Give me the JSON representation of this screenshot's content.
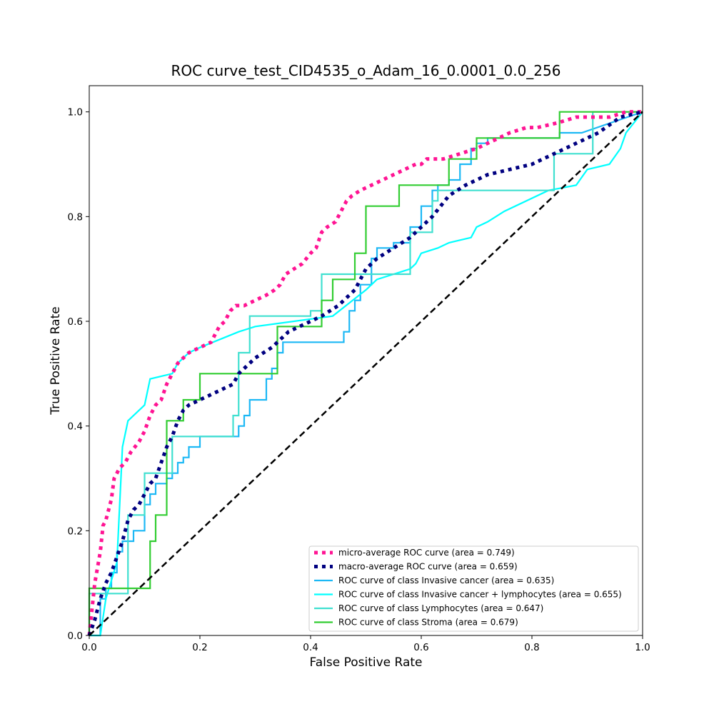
{
  "chart_data": {
    "type": "line",
    "title": "ROC curve_test_CID4535_o_Adam_16_0.0001_0.0_256",
    "xlabel": "False Positive Rate",
    "ylabel": "True Positive Rate",
    "xlim": [
      0.0,
      1.0
    ],
    "ylim": [
      0.0,
      1.05
    ],
    "xticks": [
      "0.0",
      "0.2",
      "0.4",
      "0.6",
      "0.8",
      "1.0"
    ],
    "yticks": [
      "0.0",
      "0.2",
      "0.4",
      "0.6",
      "0.8",
      "1.0"
    ],
    "grid": false,
    "legend_position": "lower-right",
    "series": [
      {
        "name": "micro-average ROC curve (area = 0.749)",
        "color": "#ff1493",
        "style": "dotted",
        "x": [
          0.0,
          0.005,
          0.01,
          0.015,
          0.02,
          0.025,
          0.03,
          0.04,
          0.045,
          0.05,
          0.055,
          0.065,
          0.075,
          0.09,
          0.1,
          0.11,
          0.12,
          0.13,
          0.14,
          0.15,
          0.16,
          0.17,
          0.18,
          0.2,
          0.22,
          0.235,
          0.245,
          0.255,
          0.265,
          0.28,
          0.3,
          0.32,
          0.335,
          0.345,
          0.355,
          0.37,
          0.385,
          0.4,
          0.41,
          0.42,
          0.43,
          0.445,
          0.455,
          0.465,
          0.475,
          0.49,
          0.51,
          0.53,
          0.55,
          0.57,
          0.59,
          0.6,
          0.61,
          0.64,
          0.67,
          0.7,
          0.72,
          0.74,
          0.76,
          0.79,
          0.81,
          0.85,
          0.88,
          0.91,
          0.94,
          0.97,
          1.0
        ],
        "y": [
          0.0,
          0.05,
          0.1,
          0.13,
          0.16,
          0.21,
          0.22,
          0.26,
          0.3,
          0.31,
          0.32,
          0.33,
          0.35,
          0.37,
          0.39,
          0.42,
          0.44,
          0.45,
          0.48,
          0.5,
          0.52,
          0.53,
          0.54,
          0.55,
          0.56,
          0.59,
          0.6,
          0.62,
          0.63,
          0.63,
          0.64,
          0.65,
          0.66,
          0.67,
          0.69,
          0.7,
          0.71,
          0.73,
          0.74,
          0.77,
          0.78,
          0.79,
          0.81,
          0.83,
          0.84,
          0.85,
          0.86,
          0.87,
          0.88,
          0.89,
          0.9,
          0.9,
          0.91,
          0.91,
          0.92,
          0.93,
          0.94,
          0.95,
          0.96,
          0.97,
          0.97,
          0.98,
          0.99,
          0.99,
          0.99,
          1.0,
          1.0
        ]
      },
      {
        "name": "macro-average ROC curve (area = 0.659)",
        "color": "#000080",
        "style": "dotted",
        "x": [
          0.0,
          0.01,
          0.02,
          0.03,
          0.04,
          0.05,
          0.06,
          0.07,
          0.08,
          0.09,
          0.1,
          0.11,
          0.12,
          0.13,
          0.14,
          0.15,
          0.16,
          0.17,
          0.18,
          0.2,
          0.22,
          0.24,
          0.26,
          0.27,
          0.28,
          0.3,
          0.33,
          0.36,
          0.38,
          0.42,
          0.45,
          0.48,
          0.5,
          0.52,
          0.55,
          0.58,
          0.6,
          0.62,
          0.65,
          0.68,
          0.72,
          0.76,
          0.8,
          0.84,
          0.88,
          0.92,
          0.96,
          1.0
        ],
        "y": [
          0.0,
          0.03,
          0.07,
          0.1,
          0.12,
          0.15,
          0.18,
          0.22,
          0.24,
          0.25,
          0.27,
          0.29,
          0.3,
          0.33,
          0.36,
          0.38,
          0.41,
          0.43,
          0.44,
          0.45,
          0.46,
          0.47,
          0.48,
          0.5,
          0.51,
          0.53,
          0.55,
          0.58,
          0.59,
          0.61,
          0.63,
          0.66,
          0.7,
          0.72,
          0.74,
          0.76,
          0.78,
          0.8,
          0.84,
          0.86,
          0.88,
          0.89,
          0.9,
          0.92,
          0.94,
          0.96,
          0.99,
          1.0
        ]
      },
      {
        "name": "ROC curve of class Invasive cancer (area = 0.635)",
        "color": "#1cb8f5",
        "style": "solid",
        "x": [
          0.0,
          0.02,
          0.02,
          0.03,
          0.03,
          0.04,
          0.04,
          0.05,
          0.05,
          0.06,
          0.06,
          0.08,
          0.08,
          0.1,
          0.1,
          0.11,
          0.11,
          0.12,
          0.12,
          0.14,
          0.14,
          0.15,
          0.15,
          0.16,
          0.16,
          0.17,
          0.17,
          0.18,
          0.18,
          0.2,
          0.2,
          0.27,
          0.27,
          0.28,
          0.28,
          0.29,
          0.29,
          0.32,
          0.32,
          0.33,
          0.33,
          0.34,
          0.34,
          0.35,
          0.35,
          0.42,
          0.42,
          0.46,
          0.46,
          0.47,
          0.47,
          0.48,
          0.48,
          0.49,
          0.49,
          0.51,
          0.51,
          0.52,
          0.52,
          0.55,
          0.55,
          0.58,
          0.58,
          0.6,
          0.6,
          0.62,
          0.62,
          0.63,
          0.63,
          0.65,
          0.65,
          0.67,
          0.67,
          0.69,
          0.69,
          0.7,
          0.7,
          0.72,
          0.72,
          0.8,
          0.8,
          0.85,
          0.85,
          0.89,
          0.89,
          1.0
        ],
        "y": [
          0.0,
          0.0,
          0.07,
          0.07,
          0.09,
          0.09,
          0.12,
          0.12,
          0.16,
          0.16,
          0.18,
          0.18,
          0.2,
          0.2,
          0.25,
          0.25,
          0.27,
          0.27,
          0.29,
          0.29,
          0.3,
          0.3,
          0.31,
          0.31,
          0.33,
          0.33,
          0.34,
          0.34,
          0.36,
          0.36,
          0.38,
          0.38,
          0.4,
          0.4,
          0.42,
          0.42,
          0.45,
          0.45,
          0.49,
          0.49,
          0.51,
          0.51,
          0.54,
          0.54,
          0.56,
          0.56,
          0.56,
          0.56,
          0.58,
          0.58,
          0.62,
          0.62,
          0.64,
          0.64,
          0.67,
          0.67,
          0.72,
          0.72,
          0.74,
          0.74,
          0.75,
          0.75,
          0.78,
          0.78,
          0.82,
          0.82,
          0.85,
          0.85,
          0.86,
          0.86,
          0.87,
          0.87,
          0.9,
          0.9,
          0.93,
          0.93,
          0.94,
          0.94,
          0.95,
          0.95,
          0.95,
          0.95,
          0.96,
          0.96,
          0.96,
          1.0
        ]
      },
      {
        "name": "ROC curve of class Invasive cancer + lymphocytes (area = 0.655)",
        "color": "#00ffff",
        "style": "solid",
        "x": [
          0.0,
          0.02,
          0.03,
          0.03,
          0.05,
          0.05,
          0.06,
          0.06,
          0.07,
          0.07,
          0.1,
          0.1,
          0.11,
          0.11,
          0.15,
          0.15,
          0.16,
          0.16,
          0.17,
          0.17,
          0.18,
          0.18,
          0.2,
          0.2,
          0.27,
          0.27,
          0.3,
          0.3,
          0.44,
          0.44,
          0.5,
          0.5,
          0.52,
          0.52,
          0.55,
          0.55,
          0.58,
          0.58,
          0.59,
          0.59,
          0.6,
          0.6,
          0.63,
          0.63,
          0.65,
          0.65,
          0.69,
          0.69,
          0.7,
          0.7,
          0.72,
          0.72,
          0.75,
          0.75,
          0.83,
          0.83,
          0.88,
          0.88,
          0.9,
          0.9,
          0.94,
          0.94,
          0.96,
          0.96,
          0.97,
          0.97,
          1.0
        ],
        "y": [
          0.0,
          0.0,
          0.07,
          0.07,
          0.14,
          0.14,
          0.36,
          0.36,
          0.41,
          0.41,
          0.44,
          0.44,
          0.49,
          0.49,
          0.5,
          0.5,
          0.52,
          0.52,
          0.53,
          0.53,
          0.54,
          0.54,
          0.55,
          0.55,
          0.58,
          0.58,
          0.59,
          0.59,
          0.61,
          0.61,
          0.66,
          0.66,
          0.68,
          0.68,
          0.69,
          0.69,
          0.7,
          0.7,
          0.71,
          0.71,
          0.73,
          0.73,
          0.74,
          0.74,
          0.75,
          0.75,
          0.76,
          0.76,
          0.78,
          0.78,
          0.79,
          0.79,
          0.81,
          0.81,
          0.85,
          0.85,
          0.86,
          0.86,
          0.89,
          0.89,
          0.9,
          0.9,
          0.93,
          0.93,
          0.96,
          0.96,
          1.0
        ]
      },
      {
        "name": "ROC curve of class Lymphocytes (area = 0.647)",
        "color": "#40e0d0",
        "style": "solid",
        "x": [
          0.0,
          0.0,
          0.07,
          0.07,
          0.1,
          0.1,
          0.15,
          0.15,
          0.26,
          0.26,
          0.27,
          0.27,
          0.29,
          0.29,
          0.4,
          0.4,
          0.42,
          0.42,
          0.47,
          0.47,
          0.51,
          0.51,
          0.58,
          0.58,
          0.62,
          0.62,
          0.63,
          0.63,
          0.84,
          0.84,
          0.91,
          0.91,
          1.0
        ],
        "y": [
          0.0,
          0.08,
          0.08,
          0.23,
          0.23,
          0.31,
          0.31,
          0.38,
          0.38,
          0.42,
          0.42,
          0.54,
          0.54,
          0.61,
          0.61,
          0.62,
          0.62,
          0.69,
          0.69,
          0.69,
          0.69,
          0.69,
          0.69,
          0.77,
          0.77,
          0.83,
          0.83,
          0.85,
          0.85,
          0.92,
          0.92,
          1.0,
          1.0
        ]
      },
      {
        "name": "ROC curve of class Stroma (area = 0.679)",
        "color": "#32cd32",
        "style": "solid",
        "x": [
          0.0,
          0.0,
          0.11,
          0.11,
          0.12,
          0.12,
          0.14,
          0.14,
          0.17,
          0.17,
          0.2,
          0.2,
          0.34,
          0.34,
          0.42,
          0.42,
          0.44,
          0.44,
          0.48,
          0.48,
          0.5,
          0.5,
          0.56,
          0.56,
          0.65,
          0.65,
          0.7,
          0.7,
          0.85,
          0.85,
          1.0
        ],
        "y": [
          0.0,
          0.09,
          0.09,
          0.18,
          0.18,
          0.23,
          0.23,
          0.41,
          0.41,
          0.45,
          0.45,
          0.5,
          0.5,
          0.59,
          0.59,
          0.64,
          0.64,
          0.68,
          0.68,
          0.73,
          0.73,
          0.82,
          0.82,
          0.86,
          0.86,
          0.91,
          0.91,
          0.95,
          0.95,
          1.0,
          1.0
        ]
      }
    ],
    "reference_line": {
      "color": "#000000",
      "style": "dashed",
      "x": [
        0.0,
        1.0
      ],
      "y": [
        0.0,
        1.0
      ]
    }
  }
}
